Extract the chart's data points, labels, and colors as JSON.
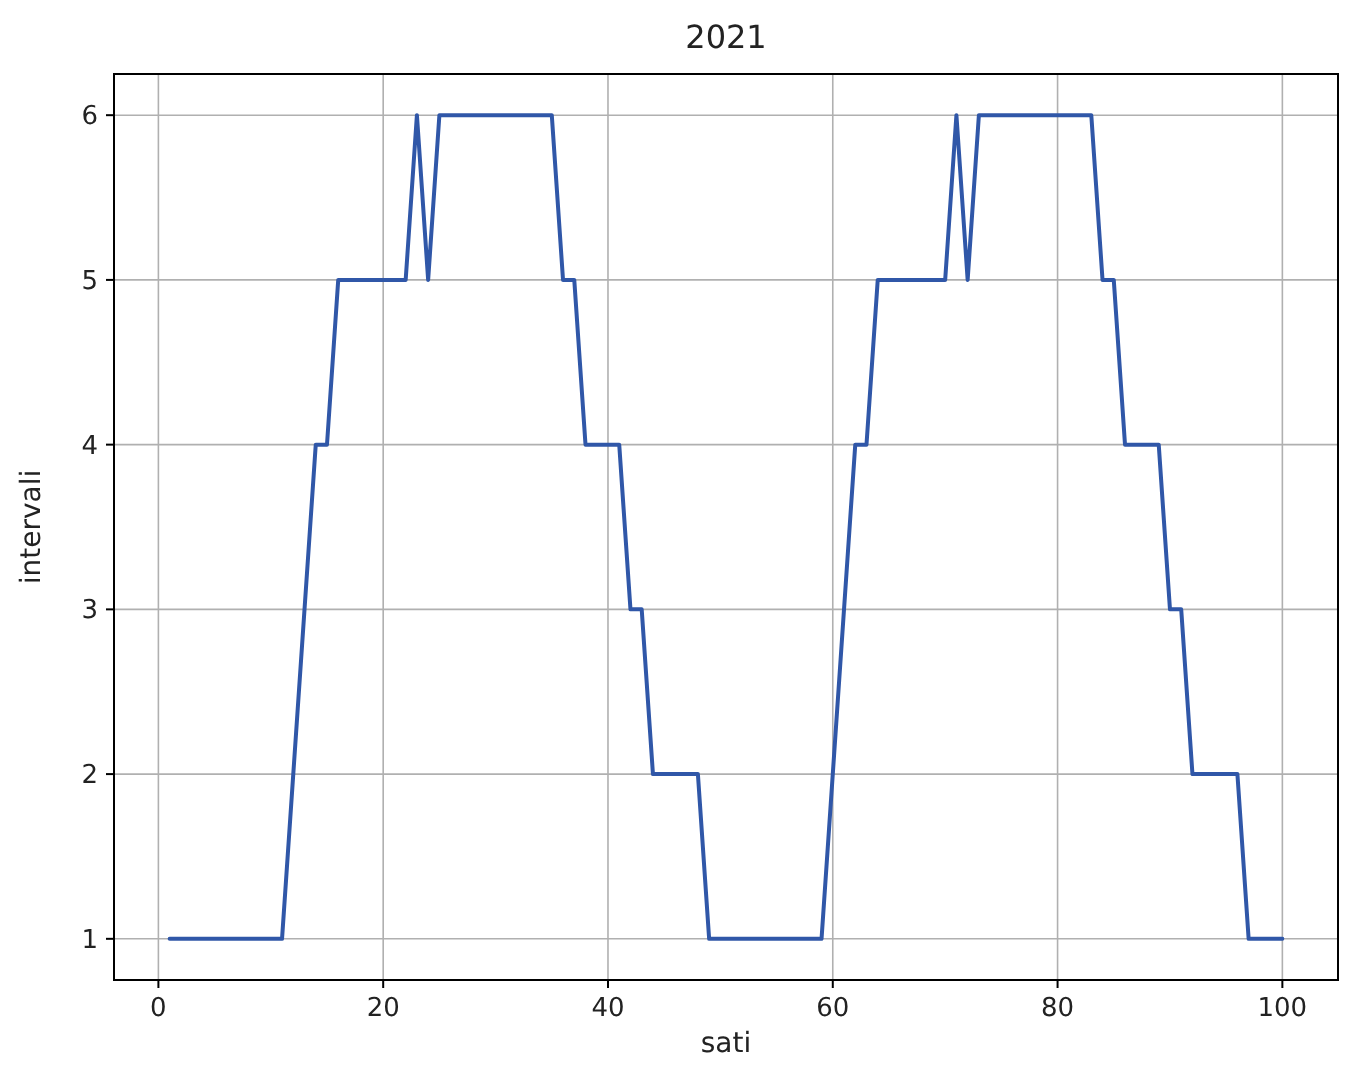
{
  "chart_data": {
    "type": "line",
    "title": "2021",
    "xlabel": "sati",
    "ylabel": "intervali",
    "x": [
      1,
      11,
      14,
      15,
      16,
      22,
      23,
      24,
      25,
      35,
      36,
      37,
      38,
      41,
      42,
      43,
      44,
      48,
      49,
      59,
      62,
      63,
      64,
      70,
      71,
      72,
      73,
      83,
      84,
      85,
      86,
      89,
      90,
      91,
      92,
      96,
      97,
      100
    ],
    "series": [
      {
        "color": "#3057a8",
        "values": [
          1,
          1,
          4,
          4,
          5,
          5,
          6,
          5,
          6,
          6,
          5,
          5,
          4,
          4,
          3,
          3,
          2,
          2,
          1,
          1,
          4,
          4,
          5,
          5,
          6,
          5,
          6,
          6,
          5,
          5,
          4,
          4,
          3,
          3,
          2,
          2,
          1,
          1
        ]
      }
    ],
    "xlim": [
      -3.95,
      104.95
    ],
    "ylim": [
      0.75,
      6.25
    ],
    "xticks": [
      0,
      20,
      40,
      60,
      80,
      100
    ],
    "yticks": [
      1,
      2,
      3,
      4,
      5,
      6
    ],
    "grid": true,
    "marker": "none",
    "line_style": "solid"
  }
}
